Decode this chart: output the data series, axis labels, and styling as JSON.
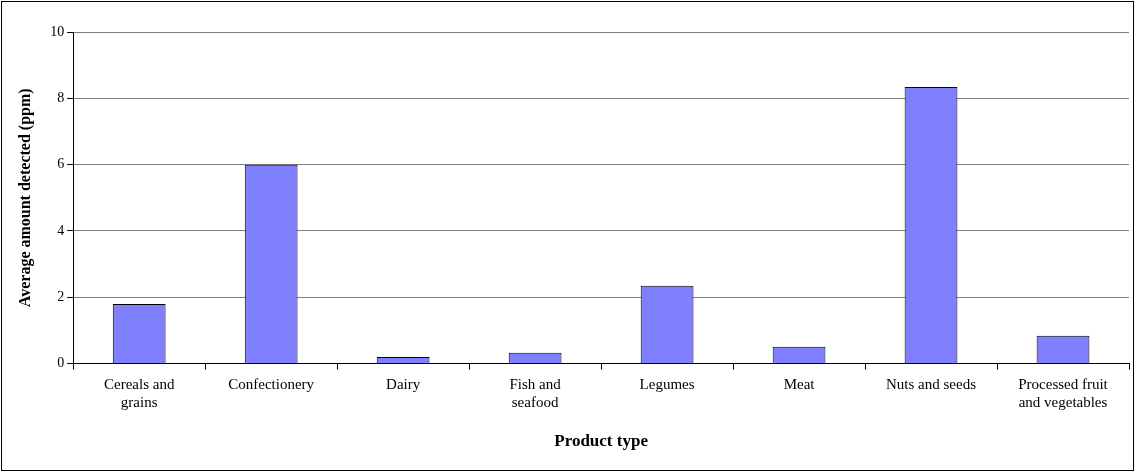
{
  "chart_data": {
    "type": "bar",
    "xlabel": "Product type",
    "ylabel": "Average amount detected (ppm)",
    "categories": [
      "Cereals and grains",
      "Confectionery",
      "Dairy",
      "Fish and seafood",
      "Legumes",
      "Meat",
      "Nuts and seeds",
      "Processed fruit and vegetables"
    ],
    "values": [
      1.8,
      6.0,
      0.2,
      0.33,
      2.35,
      0.51,
      8.34,
      0.84
    ],
    "color": "#8080ff",
    "ylim": [
      0,
      10
    ],
    "yticks": [
      0,
      2,
      4,
      6,
      8,
      10
    ],
    "grid": "y",
    "legend": false
  }
}
